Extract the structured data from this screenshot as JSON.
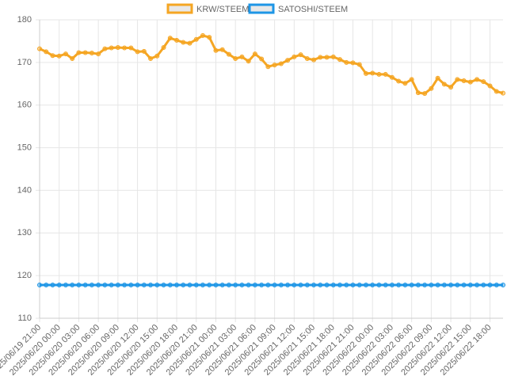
{
  "chart_data": {
    "type": "line",
    "categories": [
      "2025/06/19 21:00",
      null,
      null,
      "2025/06/20 00:00",
      null,
      null,
      "2025/06/20 03:00",
      null,
      null,
      "2025/06/20 06:00",
      null,
      null,
      "2025/06/20 09:00",
      null,
      null,
      "2025/06/20 12:00",
      null,
      null,
      "2025/06/20 15:00",
      null,
      null,
      "2025/06/20 18:00",
      null,
      null,
      "2025/06/20 21:00",
      null,
      null,
      "2025/06/21 00:00",
      null,
      null,
      "2025/06/21 03:00",
      null,
      null,
      "2025/06/21 06:00",
      null,
      null,
      "2025/06/21 09:00",
      null,
      null,
      "2025/06/21 12:00",
      null,
      null,
      "2025/06/21 15:00",
      null,
      null,
      "2025/06/21 18:00",
      null,
      null,
      "2025/06/21 21:00",
      null,
      null,
      "2025/06/22 00:00",
      null,
      null,
      "2025/06/22 03:00",
      null,
      null,
      "2025/06/22 06:00",
      null,
      null,
      "2025/06/22 09:00",
      null,
      null,
      "2025/06/22 12:00",
      null,
      null,
      "2025/06/22 15:00",
      null,
      null,
      "2025/06/22 18:00",
      null,
      null
    ],
    "series": [
      {
        "name": "KRW/STEEM",
        "color": "#f5a623",
        "values": [
          173.2,
          172.5,
          171.6,
          171.5,
          172.0,
          170.9,
          172.3,
          172.3,
          172.2,
          172.0,
          173.2,
          173.4,
          173.5,
          173.4,
          173.4,
          172.5,
          172.6,
          170.9,
          171.5,
          173.5,
          175.7,
          175.2,
          174.7,
          174.5,
          175.4,
          176.3,
          175.9,
          172.8,
          173.0,
          171.9,
          170.9,
          171.3,
          170.3,
          172.0,
          170.8,
          169.0,
          169.4,
          169.7,
          170.5,
          171.3,
          171.8,
          170.9,
          170.6,
          171.2,
          171.2,
          171.3,
          170.7,
          170.0,
          169.9,
          169.5,
          167.4,
          167.5,
          167.2,
          167.2,
          166.5,
          165.6,
          165.1,
          166.0,
          162.9,
          162.7,
          163.9,
          166.3,
          164.9,
          164.2,
          166.0,
          165.7,
          165.4,
          166.0,
          165.5,
          164.5,
          163.2,
          162.8
        ]
      },
      {
        "name": "SATOSHI/STEEM",
        "color": "#1e96e6",
        "values": [
          117.8,
          117.8,
          117.8,
          117.8,
          117.8,
          117.8,
          117.8,
          117.8,
          117.8,
          117.8,
          117.8,
          117.8,
          117.8,
          117.8,
          117.8,
          117.8,
          117.8,
          117.8,
          117.8,
          117.8,
          117.8,
          117.8,
          117.8,
          117.8,
          117.8,
          117.8,
          117.8,
          117.8,
          117.8,
          117.8,
          117.8,
          117.8,
          117.8,
          117.8,
          117.8,
          117.8,
          117.8,
          117.8,
          117.8,
          117.8,
          117.8,
          117.8,
          117.8,
          117.8,
          117.8,
          117.8,
          117.8,
          117.8,
          117.8,
          117.8,
          117.8,
          117.8,
          117.8,
          117.8,
          117.8,
          117.8,
          117.8,
          117.8,
          117.8,
          117.8,
          117.8,
          117.8,
          117.8,
          117.8,
          117.8,
          117.8,
          117.8,
          117.8,
          117.8,
          117.8,
          117.8,
          117.8
        ]
      }
    ],
    "ylim": [
      110,
      180
    ],
    "yticks": [
      110,
      120,
      130,
      140,
      150,
      160,
      170,
      180
    ],
    "grid": true
  }
}
